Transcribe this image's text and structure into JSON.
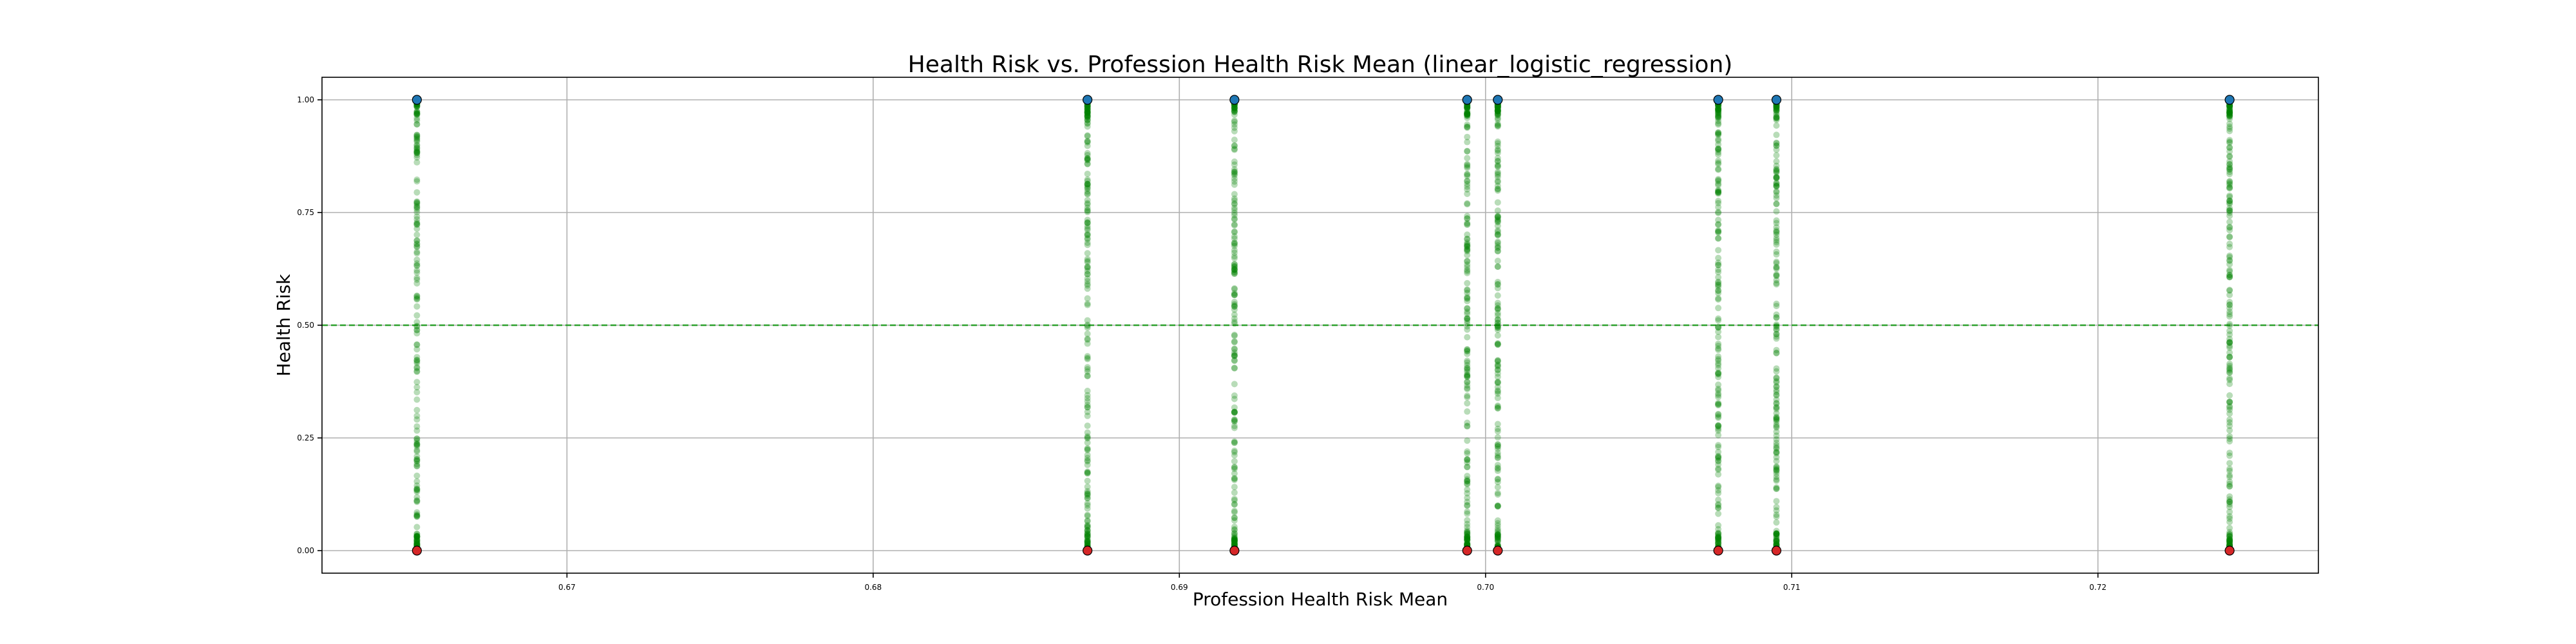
{
  "chart_data": {
    "type": "scatter",
    "title": "Health Risk vs. Profession Health Risk Mean (linear_logistic_regression)",
    "xlabel": "Profession Health Risk Mean",
    "ylabel": "Health Risk",
    "xlim": [
      0.662,
      0.7272
    ],
    "ylim": [
      -0.05,
      1.05
    ],
    "grid": true,
    "x_ticks": [
      0.67,
      0.68,
      0.69,
      0.7,
      0.71,
      0.72
    ],
    "x_tick_labels": [
      "0.67",
      "0.68",
      "0.69",
      "0.70",
      "0.71",
      "0.72"
    ],
    "y_ticks": [
      0.0,
      0.25,
      0.5,
      0.75,
      1.0
    ],
    "y_tick_labels": [
      "0.00",
      "0.25",
      "0.50",
      "0.75",
      "1.00"
    ],
    "threshold": {
      "y": 0.5,
      "style": "dashed",
      "color": "#2ca02c"
    },
    "profession_means": [
      0.6651,
      0.687,
      0.6918,
      0.6994,
      0.7004,
      0.7076,
      0.7095,
      0.7243
    ],
    "actual": {
      "values": [
        0,
        1
      ],
      "colors": {
        "0": "#d62728",
        "1": "#1f77b4"
      }
    },
    "predicted": {
      "color": "#008000",
      "range": [
        0,
        1
      ]
    }
  }
}
